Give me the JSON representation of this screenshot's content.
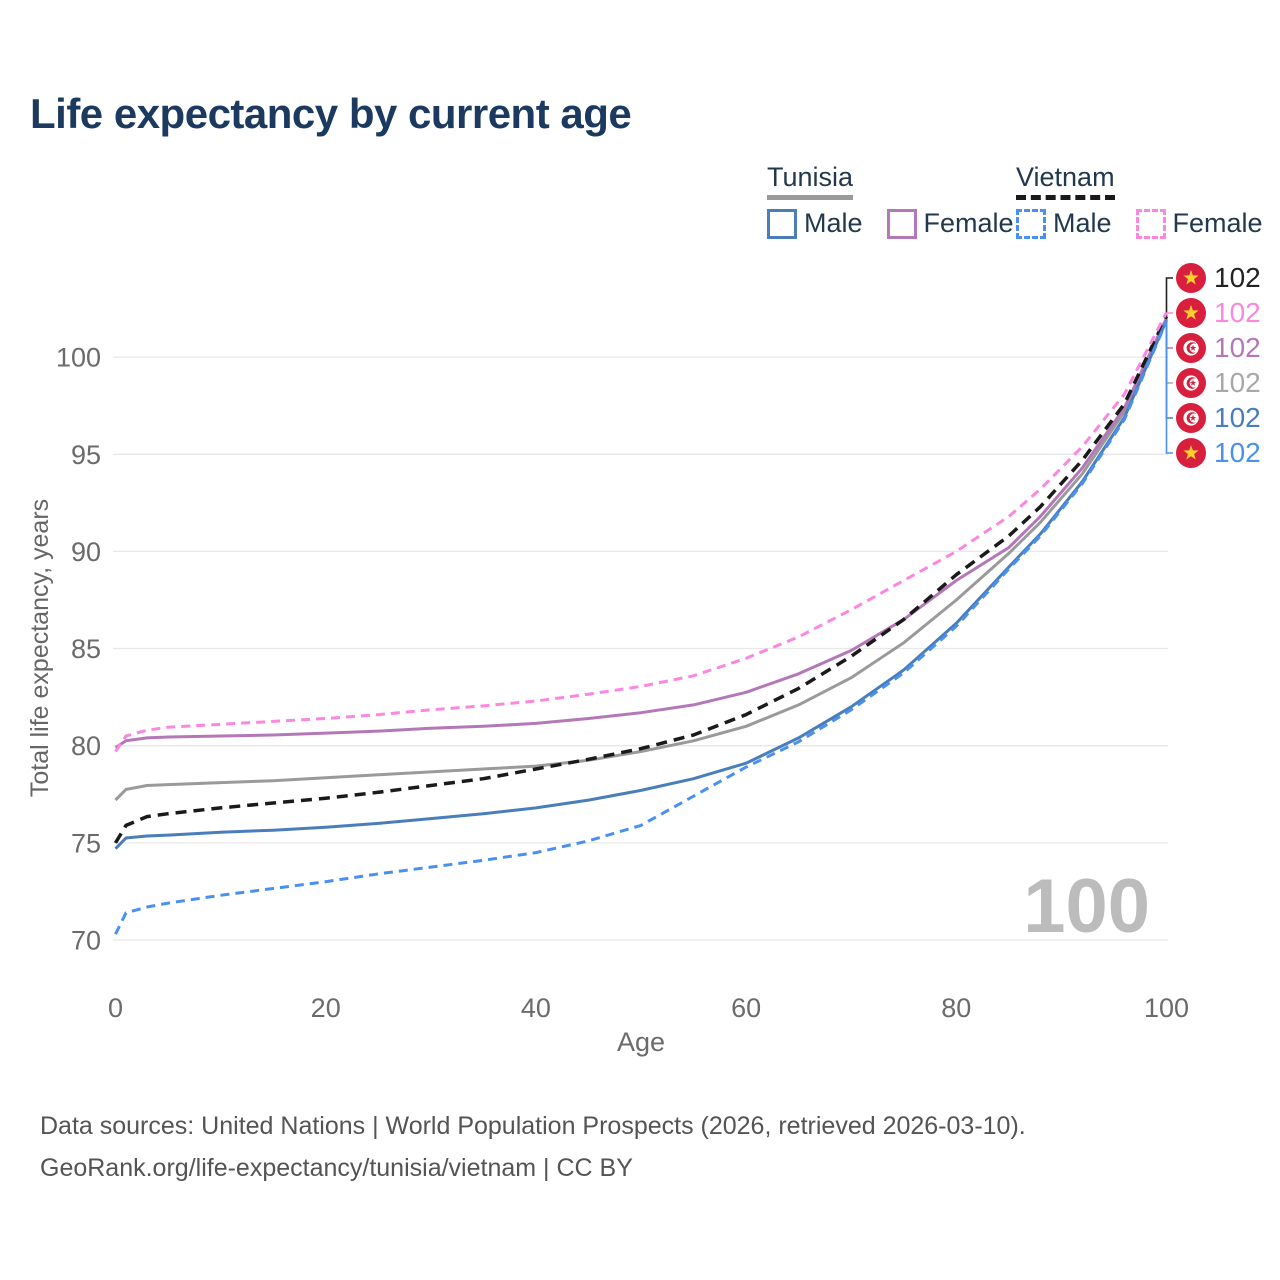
{
  "title": "Life expectancy by current age",
  "watermark": "100",
  "legend": {
    "groups": [
      {
        "country": "Tunisia",
        "line_style": "solid",
        "line_color": "#9a9a9a",
        "items": [
          {
            "label": "Male",
            "color": "#4a7ebb",
            "dashed": false
          },
          {
            "label": "Female",
            "color": "#b478b8",
            "dashed": false
          }
        ]
      },
      {
        "country": "Vietnam",
        "line_style": "dashed",
        "line_color": "#1a1a1a",
        "items": [
          {
            "label": "Male",
            "color": "#4a90f0",
            "dashed": true
          },
          {
            "label": "Female",
            "color": "#fb87e0",
            "dashed": true
          }
        ]
      }
    ]
  },
  "chart_data": {
    "type": "line",
    "title": "Life expectancy by current age",
    "xlabel": "Age",
    "ylabel": "Total life expectancy, years",
    "xlim": [
      0,
      100
    ],
    "ylim": [
      69.5,
      103
    ],
    "x_ticks": [
      0,
      20,
      40,
      60,
      80,
      100
    ],
    "y_ticks": [
      70,
      75,
      80,
      85,
      90,
      95,
      100
    ],
    "grid": "horizontal-only",
    "gridline_color": "#e8e8e8",
    "tick_color": "#6b6b6b",
    "series": [
      {
        "id": "tunisia_all",
        "name": "Tunisia",
        "country": "Tunisia",
        "group": "both sexes",
        "color": "#9a9a9a",
        "dash": "",
        "width": 3,
        "points": [
          [
            0,
            77.2
          ],
          [
            1,
            77.75
          ],
          [
            3,
            77.95
          ],
          [
            5,
            78.0
          ],
          [
            10,
            78.1
          ],
          [
            15,
            78.2
          ],
          [
            20,
            78.35
          ],
          [
            25,
            78.5
          ],
          [
            30,
            78.65
          ],
          [
            35,
            78.8
          ],
          [
            40,
            78.95
          ],
          [
            45,
            79.25
          ],
          [
            50,
            79.7
          ],
          [
            55,
            80.25
          ],
          [
            60,
            81.0
          ],
          [
            65,
            82.1
          ],
          [
            70,
            83.5
          ],
          [
            75,
            85.3
          ],
          [
            80,
            87.5
          ],
          [
            85,
            89.9
          ],
          [
            88,
            91.5
          ],
          [
            92,
            94.0
          ],
          [
            96,
            97.2
          ],
          [
            100,
            101.95
          ]
        ]
      },
      {
        "id": "tunisia_female",
        "name": "Tunisia Female",
        "country": "Tunisia",
        "group": "female",
        "color": "#b478b8",
        "dash": "",
        "width": 3,
        "points": [
          [
            0,
            79.9
          ],
          [
            1,
            80.25
          ],
          [
            3,
            80.4
          ],
          [
            5,
            80.45
          ],
          [
            10,
            80.5
          ],
          [
            15,
            80.55
          ],
          [
            20,
            80.65
          ],
          [
            25,
            80.75
          ],
          [
            30,
            80.9
          ],
          [
            35,
            81.0
          ],
          [
            40,
            81.15
          ],
          [
            45,
            81.4
          ],
          [
            50,
            81.7
          ],
          [
            55,
            82.1
          ],
          [
            60,
            82.75
          ],
          [
            65,
            83.7
          ],
          [
            70,
            84.9
          ],
          [
            75,
            86.5
          ],
          [
            80,
            88.5
          ],
          [
            85,
            90.2
          ],
          [
            88,
            91.8
          ],
          [
            92,
            94.3
          ],
          [
            96,
            97.4
          ],
          [
            100,
            102.0
          ]
        ]
      },
      {
        "id": "vietnam_all",
        "name": "Vietnam",
        "country": "Vietnam",
        "group": "both sexes",
        "color": "#1a1a1a",
        "dash": "11 7",
        "width": 3.5,
        "points": [
          [
            0,
            75.0
          ],
          [
            1,
            75.9
          ],
          [
            3,
            76.35
          ],
          [
            5,
            76.5
          ],
          [
            10,
            76.8
          ],
          [
            15,
            77.05
          ],
          [
            20,
            77.3
          ],
          [
            25,
            77.6
          ],
          [
            30,
            77.95
          ],
          [
            35,
            78.3
          ],
          [
            40,
            78.8
          ],
          [
            45,
            79.3
          ],
          [
            50,
            79.85
          ],
          [
            55,
            80.55
          ],
          [
            60,
            81.6
          ],
          [
            65,
            82.95
          ],
          [
            70,
            84.6
          ],
          [
            75,
            86.5
          ],
          [
            80,
            88.8
          ],
          [
            85,
            90.8
          ],
          [
            88,
            92.3
          ],
          [
            92,
            94.7
          ],
          [
            96,
            97.6
          ],
          [
            100,
            102.1
          ]
        ]
      },
      {
        "id": "vietnam_female",
        "name": "Vietnam Female",
        "country": "Vietnam",
        "group": "female",
        "color": "#fb87e0",
        "dash": "9 6",
        "width": 3,
        "points": [
          [
            0,
            79.7
          ],
          [
            1,
            80.5
          ],
          [
            3,
            80.8
          ],
          [
            5,
            80.95
          ],
          [
            10,
            81.1
          ],
          [
            15,
            81.25
          ],
          [
            20,
            81.4
          ],
          [
            25,
            81.6
          ],
          [
            30,
            81.85
          ],
          [
            35,
            82.05
          ],
          [
            40,
            82.3
          ],
          [
            45,
            82.65
          ],
          [
            50,
            83.05
          ],
          [
            55,
            83.6
          ],
          [
            60,
            84.5
          ],
          [
            65,
            85.6
          ],
          [
            70,
            87.0
          ],
          [
            75,
            88.5
          ],
          [
            80,
            90.0
          ],
          [
            85,
            91.8
          ],
          [
            88,
            93.2
          ],
          [
            92,
            95.4
          ],
          [
            96,
            98.1
          ],
          [
            100,
            102.3
          ]
        ]
      },
      {
        "id": "tunisia_male",
        "name": "Tunisia Male",
        "country": "Tunisia",
        "group": "male",
        "color": "#4a7ebb",
        "dash": "",
        "width": 3,
        "points": [
          [
            0,
            74.7
          ],
          [
            1,
            75.25
          ],
          [
            3,
            75.35
          ],
          [
            5,
            75.4
          ],
          [
            10,
            75.55
          ],
          [
            15,
            75.65
          ],
          [
            20,
            75.8
          ],
          [
            25,
            76.0
          ],
          [
            30,
            76.25
          ],
          [
            35,
            76.5
          ],
          [
            40,
            76.8
          ],
          [
            45,
            77.2
          ],
          [
            50,
            77.7
          ],
          [
            55,
            78.3
          ],
          [
            60,
            79.1
          ],
          [
            65,
            80.4
          ],
          [
            70,
            82.0
          ],
          [
            75,
            83.9
          ],
          [
            80,
            86.3
          ],
          [
            85,
            89.2
          ],
          [
            88,
            90.9
          ],
          [
            92,
            93.6
          ],
          [
            96,
            96.9
          ],
          [
            100,
            101.9
          ]
        ]
      },
      {
        "id": "vietnam_male",
        "name": "Vietnam Male",
        "country": "Vietnam",
        "group": "male",
        "color": "#4a90f0",
        "dash": "9 6",
        "width": 3,
        "points": [
          [
            0,
            70.3
          ],
          [
            1,
            71.4
          ],
          [
            3,
            71.7
          ],
          [
            5,
            71.9
          ],
          [
            10,
            72.3
          ],
          [
            15,
            72.65
          ],
          [
            20,
            73.0
          ],
          [
            25,
            73.4
          ],
          [
            30,
            73.75
          ],
          [
            35,
            74.1
          ],
          [
            40,
            74.5
          ],
          [
            45,
            75.1
          ],
          [
            50,
            75.9
          ],
          [
            55,
            77.4
          ],
          [
            60,
            78.9
          ],
          [
            65,
            80.2
          ],
          [
            70,
            81.85
          ],
          [
            75,
            83.75
          ],
          [
            80,
            86.15
          ],
          [
            85,
            89.1
          ],
          [
            88,
            90.8
          ],
          [
            92,
            93.5
          ],
          [
            96,
            96.8
          ],
          [
            100,
            101.85
          ]
        ]
      }
    ]
  },
  "end_labels": [
    {
      "series": "vietnam_all",
      "flag": "vietnam",
      "value": "102",
      "color": "#222222"
    },
    {
      "series": "vietnam_female",
      "flag": "vietnam",
      "value": "102",
      "color": "#fb87e0"
    },
    {
      "series": "tunisia_female",
      "flag": "tunisia",
      "value": "102",
      "color": "#b478b8"
    },
    {
      "series": "tunisia_all",
      "flag": "tunisia",
      "value": "102",
      "color": "#a8a8a8"
    },
    {
      "series": "tunisia_male",
      "flag": "tunisia",
      "value": "102",
      "color": "#4a7ebb"
    },
    {
      "series": "vietnam_male",
      "flag": "vietnam",
      "value": "102",
      "color": "#4a90f0"
    }
  ],
  "flag_colors": {
    "red": "#d81f3d",
    "star_yellow": "#ffce31",
    "white": "#ffffff"
  },
  "footer": {
    "line1": "Data sources: United Nations | World Population Prospects (2026, retrieved 2026-03-10).",
    "line2": "GeoRank.org/life-expectancy/tunisia/vietnam | CC BY"
  }
}
